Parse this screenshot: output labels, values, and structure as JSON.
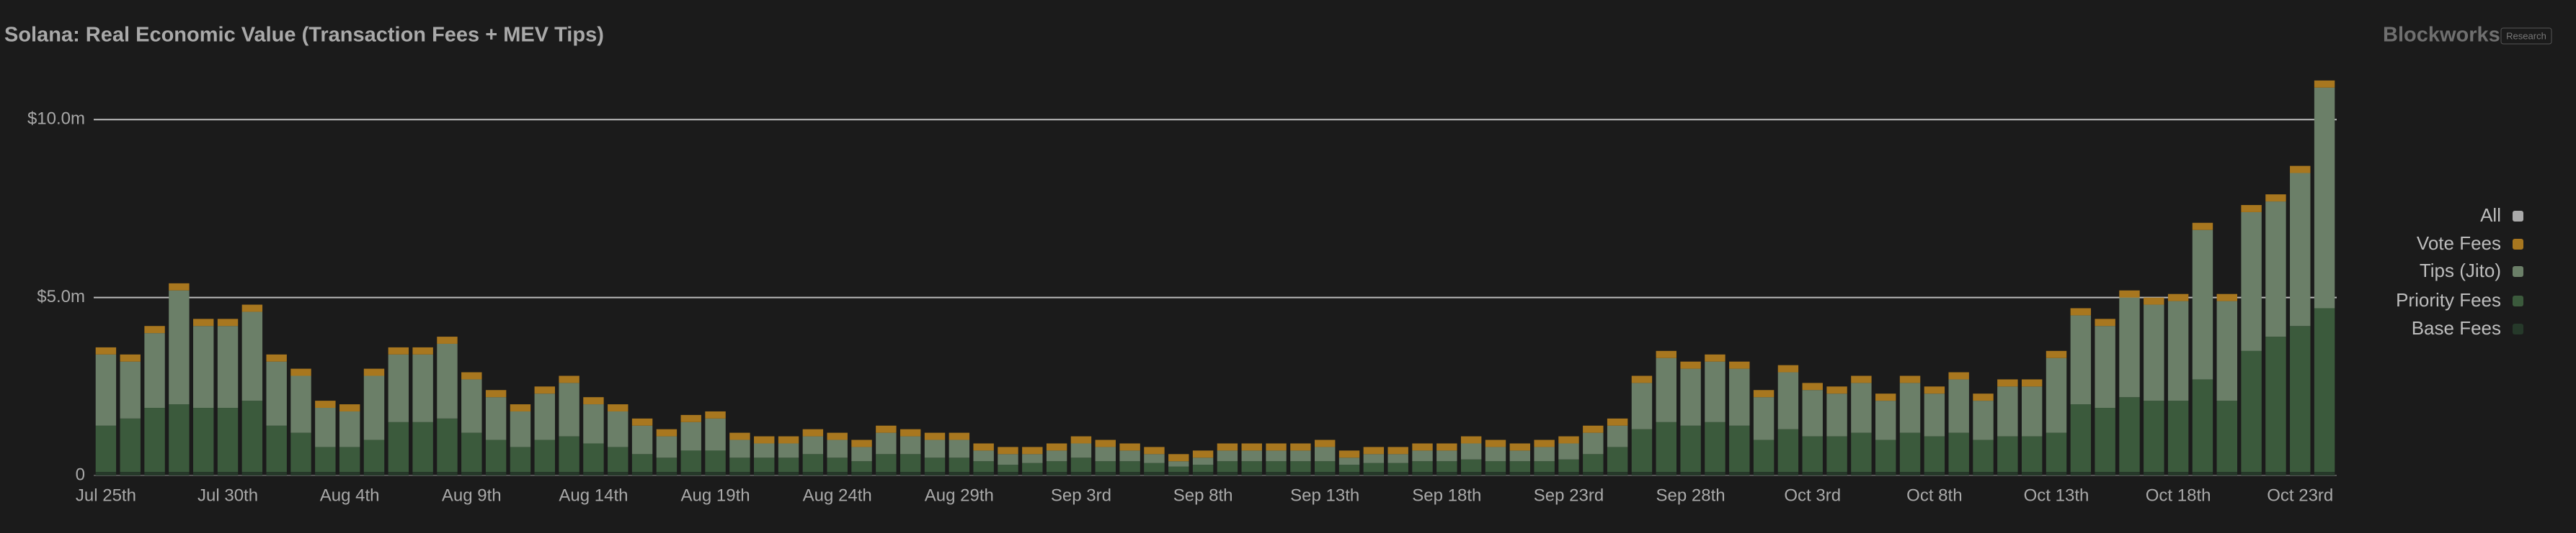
{
  "chart_data": {
    "type": "stacked-bar",
    "title": "Solana: Real Economic Value (Transaction Fees + MEV Tips)",
    "brand": "Blockworks",
    "brand_tag": "Research",
    "legend_all_label": "All",
    "categories": [
      "Jul 25th",
      null,
      null,
      null,
      null,
      "Jul 30th",
      null,
      null,
      null,
      null,
      "Aug 4th",
      null,
      null,
      null,
      null,
      "Aug 9th",
      null,
      null,
      null,
      null,
      "Aug 14th",
      null,
      null,
      null,
      null,
      "Aug 19th",
      null,
      null,
      null,
      null,
      "Aug 24th",
      null,
      null,
      null,
      null,
      "Aug 29th",
      null,
      null,
      null,
      null,
      "Sep 3rd",
      null,
      null,
      null,
      null,
      "Sep 8th",
      null,
      null,
      null,
      null,
      "Sep 13th",
      null,
      null,
      null,
      null,
      "Sep 18th",
      null,
      null,
      null,
      null,
      "Sep 23rd",
      null,
      null,
      null,
      null,
      "Sep 28th",
      null,
      null,
      null,
      null,
      "Oct 3rd",
      null,
      null,
      null,
      null,
      "Oct 8th",
      null,
      null,
      null,
      null,
      "Oct 13th",
      null,
      null,
      null,
      null,
      "Oct 18th",
      null,
      null,
      null,
      null,
      "Oct 23rd",
      null
    ],
    "series": [
      {
        "name": "Base Fees",
        "color": "#26392a",
        "values": [
          0.1,
          0.1,
          0.1,
          0.1,
          0.1,
          0.1,
          0.1,
          0.1,
          0.1,
          0.1,
          0.1,
          0.1,
          0.1,
          0.1,
          0.1,
          0.1,
          0.1,
          0.1,
          0.1,
          0.1,
          0.1,
          0.1,
          0.1,
          0.1,
          0.1,
          0.1,
          0.1,
          0.1,
          0.1,
          0.1,
          0.1,
          0.1,
          0.1,
          0.1,
          0.1,
          0.1,
          0.1,
          0.1,
          0.1,
          0.1,
          0.1,
          0.1,
          0.1,
          0.1,
          0.1,
          0.1,
          0.1,
          0.1,
          0.1,
          0.1,
          0.1,
          0.1,
          0.1,
          0.1,
          0.1,
          0.1,
          0.1,
          0.1,
          0.1,
          0.1,
          0.1,
          0.1,
          0.1,
          0.1,
          0.1,
          0.1,
          0.1,
          0.1,
          0.1,
          0.1,
          0.1,
          0.1,
          0.1,
          0.1,
          0.1,
          0.1,
          0.1,
          0.1,
          0.1,
          0.1,
          0.1,
          0.1,
          0.1,
          0.1,
          0.1,
          0.1,
          0.1,
          0.1,
          0.1,
          0.1,
          0.1,
          0.1
        ]
      },
      {
        "name": "Priority Fees",
        "color": "#3b5a3c",
        "values": [
          1.3,
          1.5,
          1.8,
          1.9,
          1.8,
          1.8,
          2.0,
          1.3,
          1.1,
          0.7,
          0.7,
          0.9,
          1.4,
          1.4,
          1.5,
          1.1,
          0.9,
          0.7,
          0.9,
          1.0,
          0.8,
          0.7,
          0.5,
          0.4,
          0.6,
          0.6,
          0.4,
          0.4,
          0.4,
          0.5,
          0.4,
          0.3,
          0.5,
          0.5,
          0.4,
          0.4,
          0.3,
          0.2,
          0.25,
          0.3,
          0.4,
          0.3,
          0.3,
          0.25,
          0.15,
          0.2,
          0.3,
          0.3,
          0.3,
          0.3,
          0.3,
          0.2,
          0.25,
          0.25,
          0.3,
          0.3,
          0.35,
          0.3,
          0.3,
          0.3,
          0.35,
          0.5,
          0.7,
          1.2,
          1.4,
          1.3,
          1.4,
          1.3,
          0.9,
          1.2,
          1.0,
          1.0,
          1.1,
          0.9,
          1.1,
          1.0,
          1.1,
          0.9,
          1.0,
          1.0,
          1.1,
          1.9,
          1.8,
          2.1,
          2.0,
          2.0,
          2.6,
          2.0,
          3.4,
          3.8,
          4.1,
          4.6
        ]
      },
      {
        "name": "Tips (Jito)",
        "color": "#6b7f68",
        "values": [
          2.0,
          1.6,
          2.1,
          3.2,
          2.3,
          2.3,
          2.5,
          1.8,
          1.6,
          1.1,
          1.0,
          1.8,
          1.9,
          1.9,
          2.1,
          1.5,
          1.2,
          1.0,
          1.3,
          1.5,
          1.1,
          1.0,
          0.8,
          0.6,
          0.8,
          0.9,
          0.5,
          0.4,
          0.4,
          0.5,
          0.5,
          0.4,
          0.6,
          0.5,
          0.5,
          0.5,
          0.3,
          0.3,
          0.25,
          0.3,
          0.4,
          0.4,
          0.3,
          0.25,
          0.15,
          0.2,
          0.3,
          0.3,
          0.3,
          0.3,
          0.4,
          0.2,
          0.25,
          0.25,
          0.3,
          0.3,
          0.45,
          0.4,
          0.3,
          0.4,
          0.45,
          0.6,
          0.6,
          1.3,
          1.8,
          1.6,
          1.7,
          1.6,
          1.2,
          1.6,
          1.3,
          1.2,
          1.4,
          1.1,
          1.4,
          1.2,
          1.5,
          1.1,
          1.4,
          1.4,
          2.1,
          2.5,
          2.3,
          2.8,
          2.7,
          2.8,
          4.2,
          2.8,
          3.9,
          3.8,
          4.3,
          6.2
        ]
      },
      {
        "name": "Vote Fees",
        "color": "#a8771f",
        "values": [
          0.2,
          0.2,
          0.2,
          0.2,
          0.2,
          0.2,
          0.2,
          0.2,
          0.2,
          0.2,
          0.2,
          0.2,
          0.2,
          0.2,
          0.2,
          0.2,
          0.2,
          0.2,
          0.2,
          0.2,
          0.2,
          0.2,
          0.2,
          0.2,
          0.2,
          0.2,
          0.2,
          0.2,
          0.2,
          0.2,
          0.2,
          0.2,
          0.2,
          0.2,
          0.2,
          0.2,
          0.2,
          0.2,
          0.2,
          0.2,
          0.2,
          0.2,
          0.2,
          0.2,
          0.2,
          0.2,
          0.2,
          0.2,
          0.2,
          0.2,
          0.2,
          0.2,
          0.2,
          0.2,
          0.2,
          0.2,
          0.2,
          0.2,
          0.2,
          0.2,
          0.2,
          0.2,
          0.2,
          0.2,
          0.2,
          0.2,
          0.2,
          0.2,
          0.2,
          0.2,
          0.2,
          0.2,
          0.2,
          0.2,
          0.2,
          0.2,
          0.2,
          0.2,
          0.2,
          0.2,
          0.2,
          0.2,
          0.2,
          0.2,
          0.2,
          0.2,
          0.2,
          0.2,
          0.2,
          0.2,
          0.2,
          0.2
        ]
      }
    ],
    "ylim": [
      0,
      11.3
    ],
    "yticks": [
      0,
      {
        "value": 5,
        "label": "$5.0m"
      },
      {
        "value": 10,
        "label": "$10.0m"
      }
    ],
    "grid": true,
    "legend_position": "right"
  }
}
